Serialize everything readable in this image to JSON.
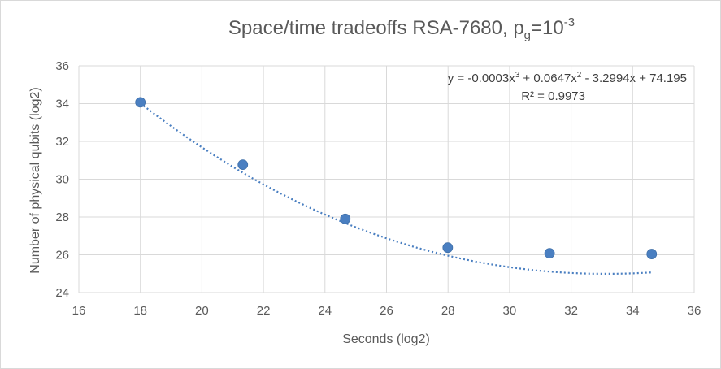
{
  "chart_data": {
    "type": "scatter",
    "title_main": "Space/time tradeoffs RSA-7680, p",
    "title_sub": "g",
    "title_after": "=10",
    "title_sup": "-3",
    "xlabel": "Seconds (log2)",
    "ylabel": "Number of physical qubits (log2)",
    "xlim": [
      16,
      36
    ],
    "ylim": [
      24,
      36
    ],
    "xticks": [
      16,
      18,
      20,
      22,
      24,
      26,
      28,
      30,
      32,
      34,
      36
    ],
    "yticks": [
      24,
      26,
      28,
      30,
      32,
      34,
      36
    ],
    "grid": true,
    "points": [
      {
        "x": 18.0,
        "y": 34.07
      },
      {
        "x": 21.33,
        "y": 30.77
      },
      {
        "x": 24.66,
        "y": 27.9
      },
      {
        "x": 27.99,
        "y": 26.38
      },
      {
        "x": 31.3,
        "y": 26.08
      },
      {
        "x": 34.62,
        "y": 26.04
      }
    ],
    "trendline": {
      "type": "polynomial",
      "coefficients": [
        -0.0003,
        0.0647,
        -3.2994,
        74.195
      ],
      "equation_parts": [
        "y = -0.0003x",
        "3",
        " + 0.0647x",
        "2",
        " - 3.2994x + 74.195"
      ],
      "r2_text": "R² = 0.9973"
    },
    "colors": {
      "marker": "#4a7fc1",
      "trend": "#4a7fc1",
      "grid": "#d9d9d9",
      "text": "#595959"
    }
  }
}
